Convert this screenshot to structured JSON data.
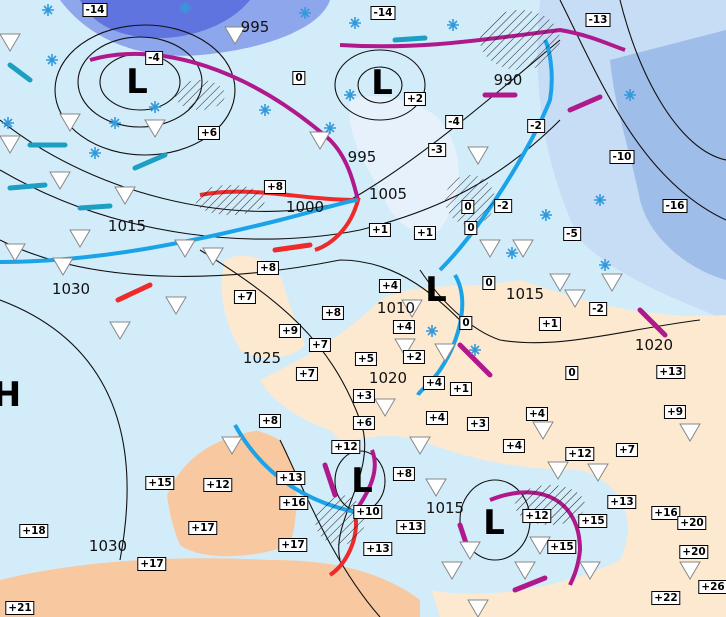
{
  "colors": {
    "sea": "#d3ecf9",
    "land_warm": "#fde9cf",
    "land_warmer": "#f8c9a0",
    "cold": "#a9c8f0",
    "very_cold": "#6b7fe0",
    "isobar": "#111111",
    "cold_front": "#1aa3e8",
    "warm_front": "#ee2a2a",
    "occluded_front": "#b0198c",
    "shower_icon": "#ffffff",
    "snow_icon": "#3399dd"
  },
  "pressure_centers": [
    "L",
    "L",
    "L",
    "L",
    "L",
    "H"
  ],
  "isobar_labels": [
    "995",
    "990",
    "995",
    "1000",
    "1005",
    "1015",
    "1030",
    "1010",
    "1015",
    "1020",
    "1025",
    "1020",
    "1030",
    "1015"
  ],
  "temperatures": [
    "-14",
    "-14",
    "-13",
    "-4",
    "0",
    "+2",
    "-4",
    "-2",
    "+6",
    "-3",
    "-10",
    "+8",
    "0",
    "-2",
    "-16",
    "0",
    "+1",
    "+1",
    "-5",
    "+8",
    "0",
    "+7",
    "+4",
    "-2",
    "+1",
    "0",
    "+9",
    "+8",
    "+4",
    "+7",
    "+2",
    "+5",
    "+7",
    "0",
    "+13",
    "+4",
    "+1",
    "+3",
    "+9",
    "+8",
    "+6",
    "+4",
    "+3",
    "+4",
    "+12",
    "+4",
    "+12",
    "+7",
    "+8",
    "+13",
    "+15",
    "+12",
    "+16",
    "+13",
    "+16",
    "+10",
    "+12",
    "+15",
    "+20",
    "+17",
    "+18",
    "+13",
    "+17",
    "+13",
    "+15",
    "+20",
    "+17",
    "+26",
    "+22",
    "+21"
  ],
  "icons": {
    "shower": "shower-triangle-icon",
    "snow": "snowflake-icon",
    "rain": "raindrop-icon",
    "wind": "wind-arrow-icon"
  }
}
